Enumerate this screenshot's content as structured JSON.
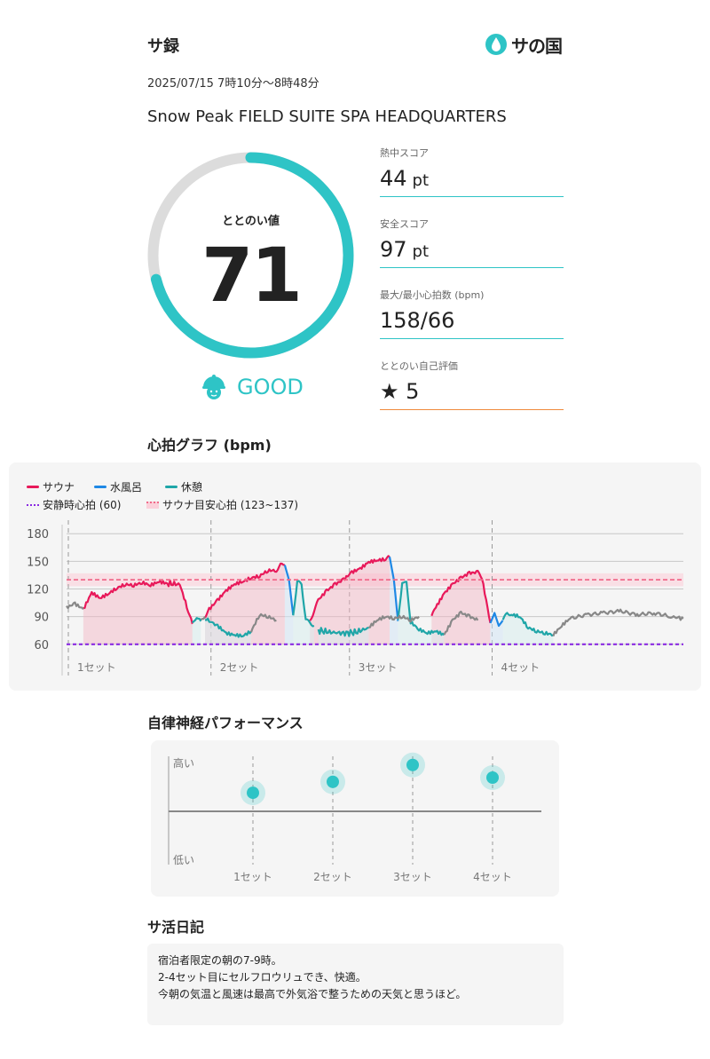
{
  "header": {
    "title": "サ録",
    "logo_text": "サの国",
    "datetime": "2025/07/15 7時10分〜8時48分",
    "facility": "Snow Peak FIELD SUITE SPA HEADQUARTERS"
  },
  "totonoi": {
    "label": "ととのい値",
    "value": "71",
    "progress": 0.71,
    "rating_text": "GOOD"
  },
  "metrics": [
    {
      "label": "熱中スコア",
      "value": "44",
      "unit": "pt"
    },
    {
      "label": "安全スコア",
      "value": "97",
      "unit": "pt"
    },
    {
      "label": "最大/最小心拍数 (bpm)",
      "value": "158/66",
      "unit": ""
    },
    {
      "label": "ととのい自己評価",
      "value": "★ 5",
      "unit": ""
    }
  ],
  "heart_chart": {
    "section_title": "心拍グラフ (bpm)",
    "legend": {
      "sauna": "サウナ",
      "water": "水風呂",
      "rest": "休憩",
      "resting_hr": "安静時心拍 (60)",
      "sauna_target": "サウナ目安心拍 (123~137)"
    },
    "colors": {
      "sauna": "#e8195a",
      "water": "#1e88e5",
      "rest": "#1fa6a8",
      "other": "#888888",
      "resting": "#8a2be2",
      "target": "#f06a8a"
    },
    "set_labels": [
      "1セット",
      "2セット",
      "3セット",
      "4セット"
    ]
  },
  "chart_data": {
    "type": "line",
    "ylim": [
      55,
      185
    ],
    "y_ticks": [
      "180",
      "150",
      "120",
      "90",
      "60"
    ],
    "y_tick_values": [
      180,
      150,
      120,
      90,
      60
    ],
    "resting_hr": 60,
    "target_band": [
      123,
      137
    ],
    "target_line": 130,
    "series": [
      {
        "name": "サウナ",
        "segments": [
          [
            [
              4,
              98
            ],
            [
              6,
              116
            ],
            [
              8,
              110
            ],
            [
              10,
              115
            ],
            [
              12,
              121
            ],
            [
              14,
              125
            ],
            [
              16,
              124
            ],
            [
              18,
              127
            ],
            [
              20,
              124
            ],
            [
              22,
              128
            ],
            [
              24,
              126
            ],
            [
              27,
              125
            ],
            [
              29,
              96
            ],
            [
              30,
              82
            ]
          ],
          [
            [
              33,
              90
            ],
            [
              34,
              98
            ],
            [
              36,
              108
            ],
            [
              38,
              118
            ],
            [
              40,
              125
            ],
            [
              42,
              128
            ],
            [
              44,
              132
            ],
            [
              46,
              134
            ],
            [
              48,
              140
            ],
            [
              50,
              140
            ],
            [
              51,
              146
            ],
            [
              52,
              146
            ]
          ],
          [
            [
              58,
              85
            ],
            [
              59,
              96
            ],
            [
              60,
              108
            ],
            [
              62,
              118
            ],
            [
              64,
              125
            ],
            [
              66,
              130
            ],
            [
              68,
              138
            ],
            [
              70,
              142
            ],
            [
              72,
              149
            ],
            [
              74,
              151
            ],
            [
              76,
              152
            ],
            [
              77,
              155
            ]
          ],
          [
            [
              87,
              90
            ],
            [
              88,
              100
            ],
            [
              90,
              115
            ],
            [
              92,
              125
            ],
            [
              94,
              132
            ],
            [
              96,
              137
            ],
            [
              98,
              138
            ],
            [
              99,
              132
            ],
            [
              101,
              83
            ]
          ]
        ]
      },
      {
        "name": "水風呂",
        "segments": [
          [
            [
              52,
              146
            ],
            [
              53,
              130
            ],
            [
              54,
              92
            ]
          ],
          [
            [
              77,
              155
            ],
            [
              78,
              130
            ],
            [
              79,
              85
            ]
          ],
          [
            [
              101,
              83
            ],
            [
              102,
              94
            ],
            [
              103,
              80
            ],
            [
              104,
              86
            ]
          ]
        ]
      },
      {
        "name": "休憩",
        "segments": [
          [
            [
              30,
              82
            ],
            [
              31,
              90
            ],
            [
              32,
              85
            ]
          ],
          [
            [
              33,
              88
            ],
            [
              36,
              80
            ],
            [
              38,
              72
            ],
            [
              40,
              70
            ],
            [
              42,
              69
            ],
            [
              44,
              74
            ]
          ],
          [
            [
              54,
              92
            ],
            [
              55,
              128
            ],
            [
              56,
              125
            ],
            [
              57,
              87
            ],
            [
              58,
              83
            ],
            [
              59,
              80
            ]
          ],
          [
            [
              60,
              75
            ],
            [
              63,
              73
            ],
            [
              66,
              72
            ],
            [
              69,
              73
            ],
            [
              72,
              78
            ]
          ],
          [
            [
              79,
              85
            ],
            [
              80,
              128
            ],
            [
              81,
              126
            ],
            [
              82,
              84
            ],
            [
              84,
              76
            ],
            [
              86,
              72
            ],
            [
              88,
              74
            ],
            [
              90,
              70
            ]
          ],
          [
            [
              104,
              86
            ],
            [
              105,
              94
            ],
            [
              106,
              92
            ],
            [
              108,
              90
            ],
            [
              110,
              78
            ],
            [
              112,
              74
            ],
            [
              114,
              72
            ],
            [
              116,
              70
            ]
          ]
        ]
      },
      {
        "name": "その他",
        "segments": [
          [
            [
              0,
              100
            ],
            [
              2,
              104
            ],
            [
              4,
              98
            ]
          ],
          [
            [
              32,
              85
            ],
            [
              33,
              90
            ]
          ],
          [
            [
              44,
              74
            ],
            [
              46,
              92
            ],
            [
              48,
              90
            ],
            [
              50,
              86
            ]
          ],
          [
            [
              72,
              78
            ],
            [
              74,
              86
            ],
            [
              76,
              90
            ],
            [
              78,
              88
            ],
            [
              80,
              90
            ],
            [
              82,
              86
            ],
            [
              84,
              90
            ]
          ],
          [
            [
              90,
              70
            ],
            [
              92,
              86
            ],
            [
              94,
              94
            ],
            [
              96,
              90
            ],
            [
              98,
              86
            ]
          ],
          [
            [
              116,
              70
            ],
            [
              118,
              80
            ],
            [
              120,
              88
            ],
            [
              124,
              92
            ],
            [
              128,
              94
            ],
            [
              132,
              96
            ],
            [
              136,
              92
            ],
            [
              140,
              94
            ],
            [
              144,
              90
            ],
            [
              147,
              88
            ]
          ]
        ]
      }
    ],
    "set_boundaries": [
      0,
      34,
      67,
      101
    ]
  },
  "ans": {
    "section_title": "自律神経パフォーマンス",
    "y_high": "高い",
    "y_low": "低い",
    "sets": [
      "1セット",
      "2セット",
      "3セット",
      "4セット"
    ],
    "values": [
      0.22,
      0.35,
      0.55,
      0.4
    ]
  },
  "diary": {
    "section_title": "サ活日記",
    "lines": [
      "宿泊者限定の朝の7-9時。",
      "2-4セット目にセルフロウリュでき、快適。",
      "今朝の気温と風速は最高で外気浴で整うための天気と思うほど。"
    ]
  }
}
